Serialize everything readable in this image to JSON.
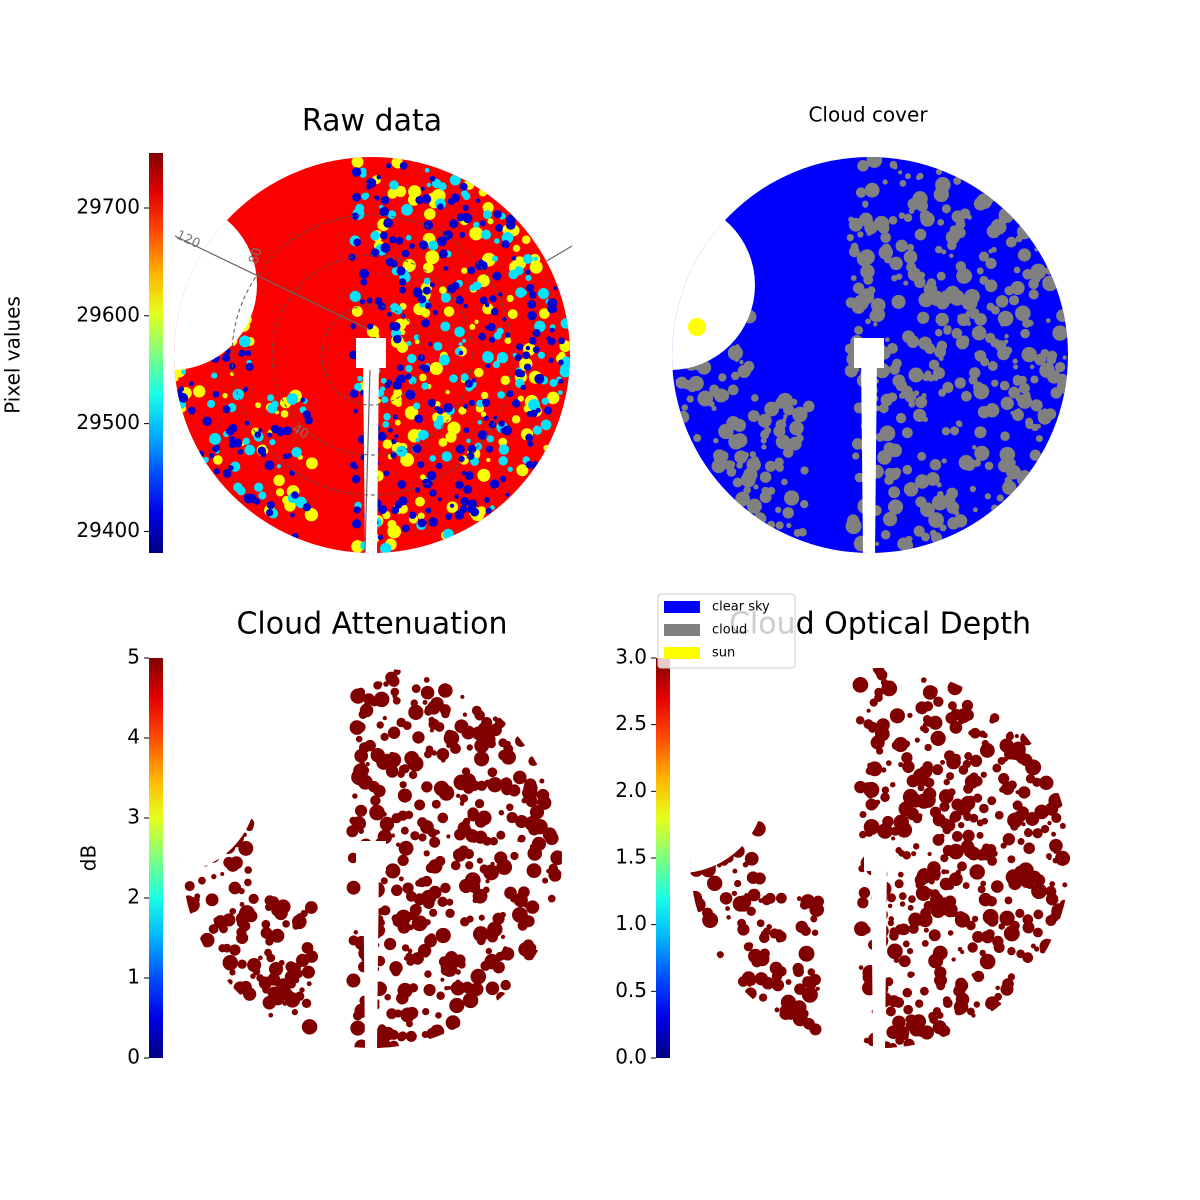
{
  "chart_data": [
    {
      "type": "image",
      "title": "Raw data",
      "colormap": "jet",
      "colorbar_label": "Pixel values",
      "ylim": [
        29380,
        29751
      ],
      "yticks": [
        29400,
        29500,
        29600,
        29700
      ],
      "polar_labels": [
        "120",
        "80",
        "40"
      ]
    },
    {
      "type": "image",
      "title": "Cloud cover",
      "series": [
        {
          "name": "clear sky",
          "color": "#0000ff"
        },
        {
          "name": "cloud",
          "color": "#808080"
        },
        {
          "name": "sun",
          "color": "#ffff00"
        }
      ]
    },
    {
      "type": "image",
      "title": "Cloud Attenuation",
      "colormap": "jet",
      "colorbar_label": "dB",
      "ylim": [
        0,
        5
      ],
      "yticks": [
        0,
        1,
        2,
        3,
        4,
        5
      ]
    },
    {
      "type": "image",
      "title": "Cloud Optical Depth",
      "colormap": "jet",
      "ylim": [
        0,
        3
      ],
      "yticks": [
        {
          "value": 0,
          "label": "0.0"
        },
        0.5,
        {
          "value": 1,
          "label": "1.0"
        },
        1.5,
        {
          "value": 2,
          "label": "2.0"
        },
        2.5,
        {
          "value": 3,
          "label": "3.0"
        }
      ]
    }
  ]
}
